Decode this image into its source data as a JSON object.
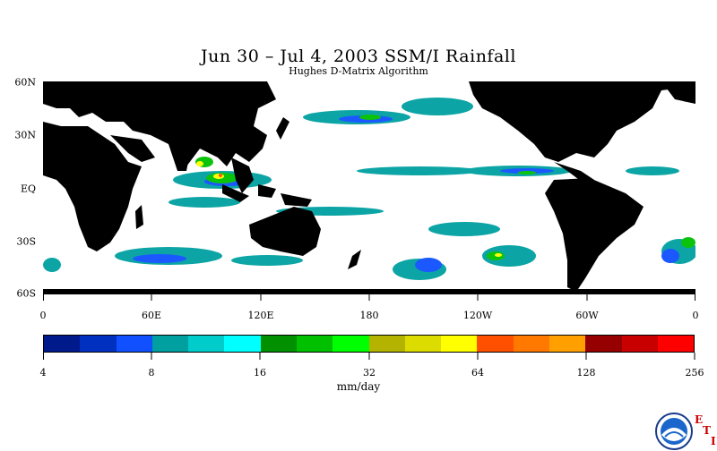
{
  "title": "Jun 30 – Jul 4, 2003 SSM/I Rainfall",
  "subtitle": "Hughes D-Matrix Algorithm",
  "map": {
    "lat_labels": [
      "60N",
      "30N",
      "EQ",
      "30S",
      "60S"
    ],
    "lat_values": [
      60,
      30,
      0,
      -30,
      -60
    ],
    "lat_range": [
      -60,
      60
    ],
    "lon_labels": [
      "0",
      "60E",
      "120E",
      "180",
      "120W",
      "60W",
      "0"
    ],
    "lon_values": [
      0,
      60,
      120,
      180,
      240,
      300,
      360
    ],
    "lon_range": [
      0,
      360
    ],
    "land_color": "#000000",
    "ocean_color": "#ffffff"
  },
  "colorbar": {
    "colors": [
      "#001a8c",
      "#0030c0",
      "#1050ff",
      "#00a0a0",
      "#00cccc",
      "#00ffff",
      "#009000",
      "#00c000",
      "#00ff00",
      "#b4b400",
      "#dcdc00",
      "#ffff00",
      "#ff5000",
      "#ff7800",
      "#ffa000",
      "#960000",
      "#c80000",
      "#ff0000"
    ],
    "tick_labels": [
      "4",
      "8",
      "16",
      "32",
      "64",
      "128",
      "256"
    ],
    "units": "mm/day"
  },
  "logo": {
    "icon": "noaa-logo-icon",
    "letters": [
      "E",
      "T",
      "I"
    ]
  }
}
